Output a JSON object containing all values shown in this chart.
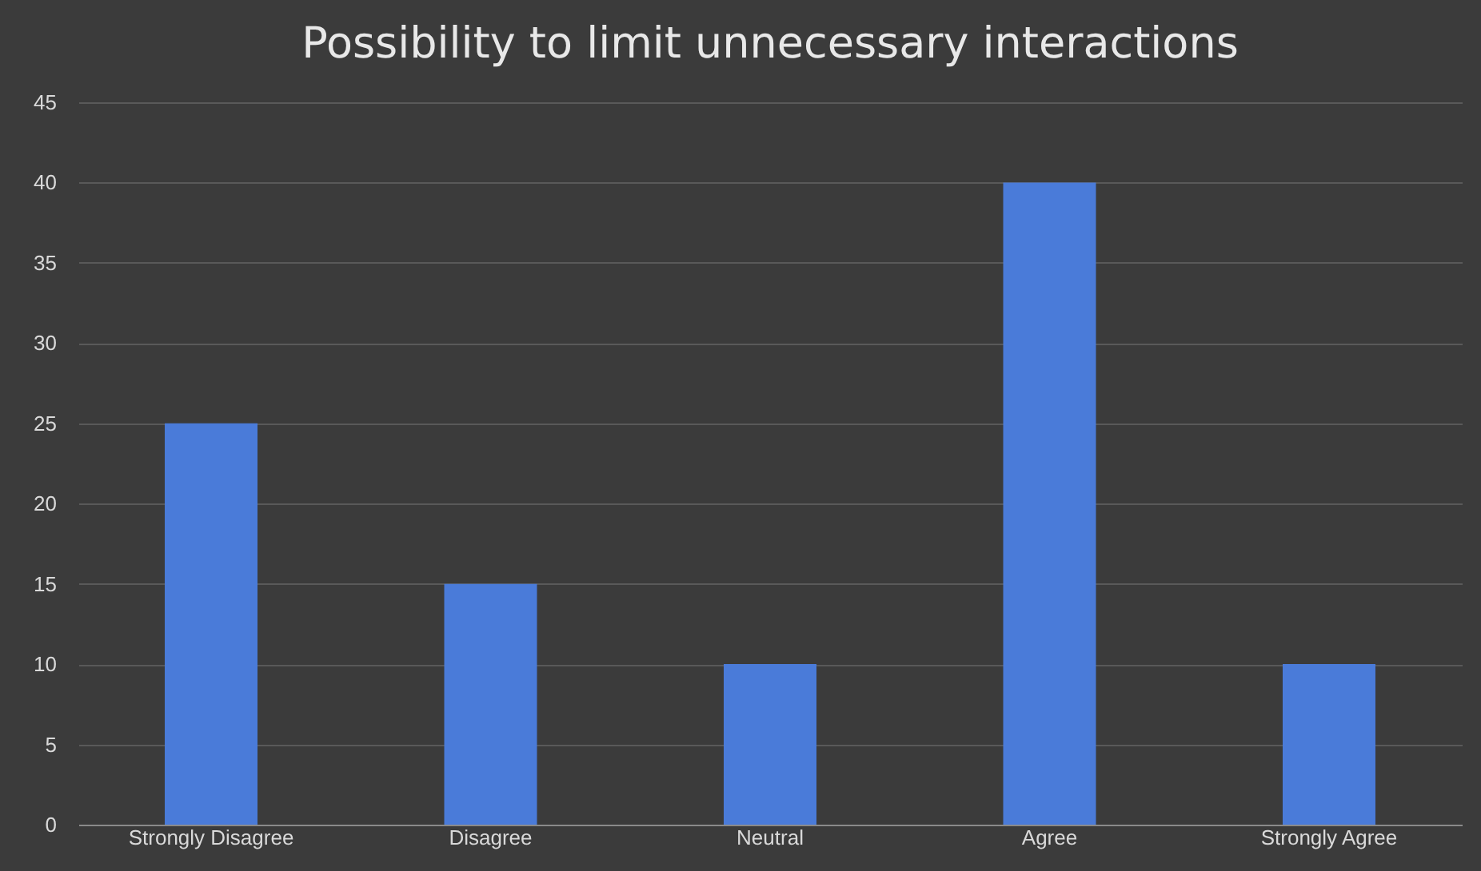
{
  "chart_data": {
    "type": "bar",
    "title": "Possibility to limit unnecessary interactions",
    "categories": [
      "Strongly Disagree",
      "Disagree",
      "Neutral",
      "Agree",
      "Strongly Agree"
    ],
    "values": [
      25,
      15,
      10,
      40,
      10
    ],
    "color": "#4a7bd9",
    "ylim": [
      0,
      45
    ],
    "yticks": [
      0,
      5,
      10,
      15,
      20,
      25,
      30,
      35,
      40,
      45
    ],
    "grid": "y"
  }
}
